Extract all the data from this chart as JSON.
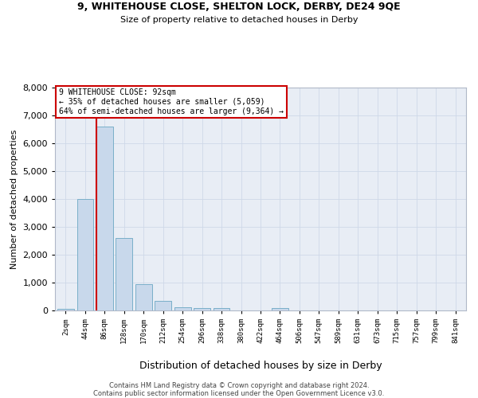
{
  "title1": "9, WHITEHOUSE CLOSE, SHELTON LOCK, DERBY, DE24 9QE",
  "title2": "Size of property relative to detached houses in Derby",
  "xlabel": "Distribution of detached houses by size in Derby",
  "ylabel": "Number of detached properties",
  "footer_line1": "Contains HM Land Registry data © Crown copyright and database right 2024.",
  "footer_line2": "Contains public sector information licensed under the Open Government Licence v3.0.",
  "bin_labels": [
    "2sqm",
    "44sqm",
    "86sqm",
    "128sqm",
    "170sqm",
    "212sqm",
    "254sqm",
    "296sqm",
    "338sqm",
    "380sqm",
    "422sqm",
    "464sqm",
    "506sqm",
    "547sqm",
    "589sqm",
    "631sqm",
    "673sqm",
    "715sqm",
    "757sqm",
    "799sqm",
    "841sqm"
  ],
  "bar_values": [
    50,
    4000,
    6600,
    2600,
    950,
    330,
    120,
    100,
    80,
    5,
    5,
    90,
    0,
    0,
    0,
    0,
    0,
    0,
    0,
    0,
    0
  ],
  "bar_color": "#c8d8eb",
  "bar_edge_color": "#7aafc9",
  "red_line_bin_index": 2,
  "red_line_color": "#cc0000",
  "ylim_max": 8000,
  "yticks": [
    0,
    1000,
    2000,
    3000,
    4000,
    5000,
    6000,
    7000,
    8000
  ],
  "annotation_line1": "9 WHITEHOUSE CLOSE: 92sqm",
  "annotation_line2": "← 35% of detached houses are smaller (5,059)",
  "annotation_line3": "64% of semi-detached houses are larger (9,364) →",
  "annotation_box_facecolor": "#ffffff",
  "annotation_border_color": "#cc0000",
  "grid_color": "#ced8e8",
  "plot_bg_color": "#e8edf5",
  "fig_bg_color": "#ffffff"
}
